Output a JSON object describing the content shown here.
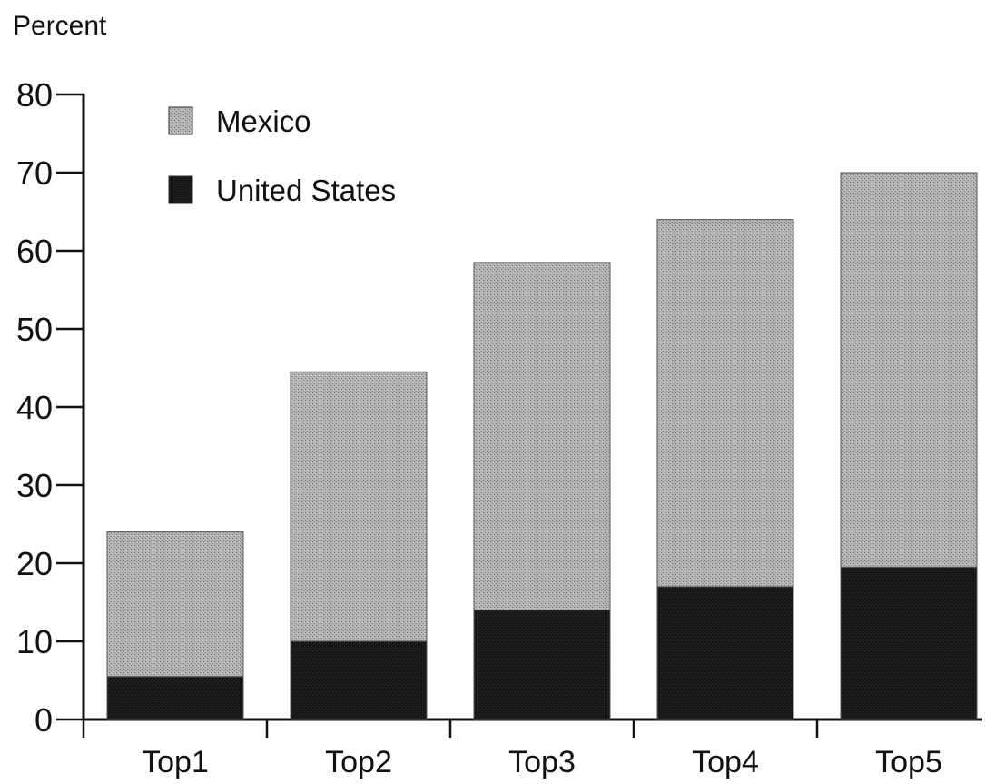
{
  "chart_data": {
    "type": "bar",
    "stacked": true,
    "title": "",
    "xlabel": "",
    "ylabel": "Percent",
    "ylim": [
      0,
      80
    ],
    "yticks": [
      "0",
      "10",
      "20",
      "30",
      "40",
      "50",
      "60",
      "70",
      "80"
    ],
    "categories": [
      "Top1",
      "Top2",
      "Top3",
      "Top4",
      "Top5"
    ],
    "series": [
      {
        "name": "United States",
        "values": [
          5.5,
          10,
          14,
          17,
          19.5
        ],
        "color": "#141414"
      },
      {
        "name": "Mexico",
        "values": [
          18.5,
          34.5,
          44.5,
          47,
          50.5
        ],
        "color": "#a9a9a9"
      }
    ],
    "legend": {
      "placement": "top-left"
    },
    "grid": false
  }
}
